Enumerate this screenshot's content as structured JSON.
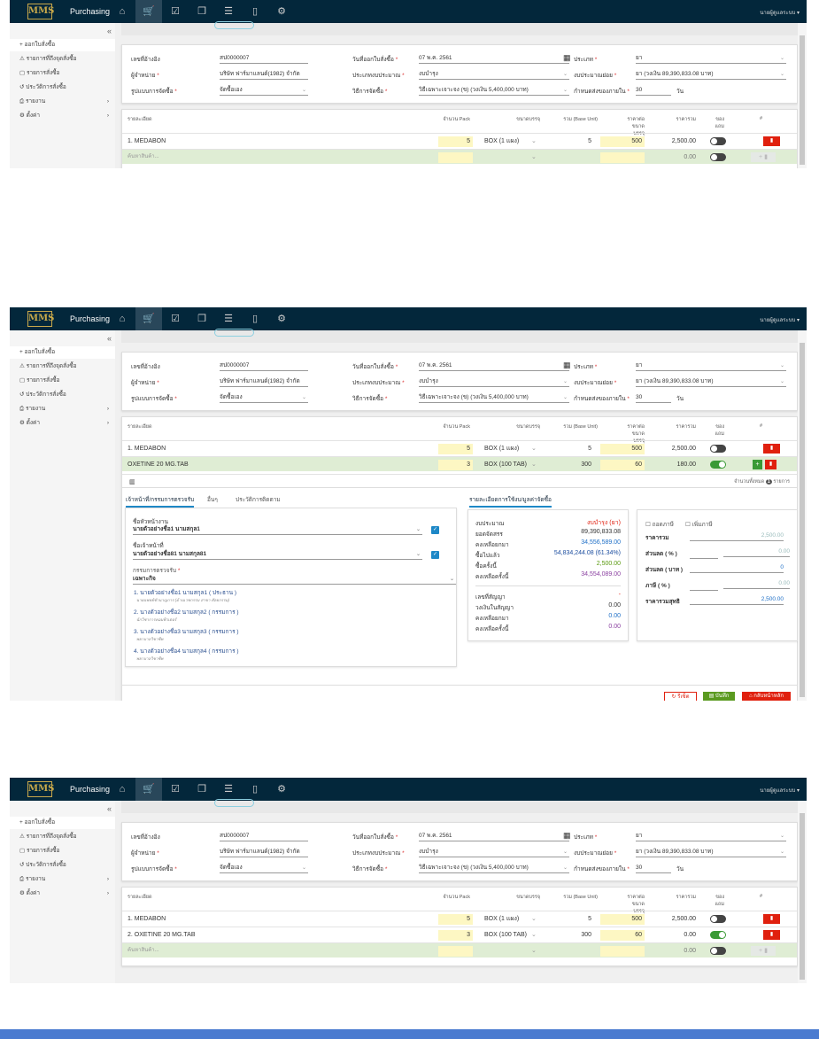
{
  "app": {
    "title": "Purchasing",
    "logo": "MMS",
    "user": "นายผู้ดูแลระบบ ▾",
    "collapse": "«"
  },
  "nav_icons": [
    "home-icon",
    "cart-icon",
    "checklist-icon",
    "box-icon",
    "database-icon",
    "document-icon",
    "gear-icon"
  ],
  "nav_glyphs": [
    "⌂",
    "🛒",
    "☑",
    "❒",
    "☰",
    "▯",
    "⚙"
  ],
  "sidebar": {
    "items": [
      {
        "label": "+ ออกใบสั่งซื้อ",
        "icon": "plus-icon",
        "active": true
      },
      {
        "label": "⚠ รายการที่ถึงจุดสั่งซื้อ",
        "icon": "warning-icon"
      },
      {
        "label": "▢ รายการสั่งซื้อ",
        "icon": "bag-icon"
      },
      {
        "label": "↺ ประวัติการสั่งซื้อ",
        "icon": "history-icon"
      },
      {
        "label": "⎙ รายงาน",
        "icon": "printer-icon",
        "chevron": "›"
      },
      {
        "label": "⚙ ตั้งค่า",
        "icon": "gear-icon",
        "chevron": "›"
      }
    ]
  },
  "form": {
    "fields": [
      {
        "label": "เลขที่อ้างอิง",
        "value": "สป0000007"
      },
      {
        "label": "ผู้จำหน่าย",
        "value": "บริษัท ฟาร์มาแลนด์(1982) จำกัด",
        "required": "*"
      },
      {
        "label": "รูปแบบการจัดซื้อ",
        "value": "จัดซื้อเอง",
        "required": "*"
      },
      {
        "label": "วันที่ออกใบสั่งซื้อ",
        "value": "07 พ.ค. 2561",
        "required": "*"
      },
      {
        "label": "ประเภทงบประมาณ",
        "value": "งบบำรุง",
        "required": "*"
      },
      {
        "label": "วิธีการจัดซื้อ",
        "value": "วิธีเฉพาะเจาะจง (ข) (วงเงิน 5,400,000 บาท)",
        "required": "*"
      },
      {
        "label": "ประเภท",
        "value": "ยา",
        "required": "*"
      },
      {
        "label": "งบประมาณย่อย",
        "value": "ยา (วงเงิน 89,390,833.08 บาท)",
        "required": "*"
      },
      {
        "label": "กำหนดส่งของภายใน",
        "value": "30",
        "required": "*",
        "unit": "วัน"
      }
    ]
  },
  "table": {
    "headers": [
      "รายละเอียด",
      "จำนวน Pack",
      "ขนาดบรรจุ",
      "รวม (Base Unit)",
      "ราคาต่อขนาดบรรจุ",
      "ราคารวม",
      "ของแถม",
      "#"
    ],
    "search_placeholder": "ค้นหาสินค้า...",
    "search_total": "0.00"
  },
  "panels": [
    {
      "rows": [
        {
          "name": "1. MEDABON",
          "pack": "5",
          "size": "BOX (1 แผง)",
          "base": "5",
          "price": "500",
          "total": "2,500.00",
          "free": false
        }
      ],
      "search": true
    },
    {
      "rows": [
        {
          "name": "1. MEDABON",
          "pack": "5",
          "size": "BOX (1 แผง)",
          "base": "5",
          "price": "500",
          "total": "2,500.00",
          "free": false
        },
        {
          "name": "OXETINE 20 MG.TAB",
          "pack": "3",
          "size": "BOX (100 TAB)",
          "base": "300",
          "price": "60",
          "total": "180.00",
          "free": true,
          "editing": true
        }
      ],
      "search": false,
      "details": true
    },
    {
      "rows": [
        {
          "name": "1. MEDABON",
          "pack": "5",
          "size": "BOX (1 แผง)",
          "base": "5",
          "price": "500",
          "total": "2,500.00",
          "free": false
        },
        {
          "name": "2. OXETINE 20 MG.TAB",
          "pack": "3",
          "size": "BOX (100 TAB)",
          "base": "300",
          "price": "60",
          "total": "0.00",
          "free": true
        }
      ],
      "search": true
    }
  ],
  "details": {
    "count_label": "จำนวนทั้งหมด",
    "count": "1",
    "count_unit": "รายการ",
    "tabs": [
      "เจ้าหน้าที่/กรรมการตรวจรับ",
      "อื่นๆ",
      "ประวัติการติดตาม"
    ],
    "right_tab": "รายละเอียดการใช้งบ/มูลค่าจัดซื้อ",
    "supervisor_label": "ชื่อหัวหน้างาน",
    "supervisor": "นายตัวอย่างชื่อ1 นามสกุล1",
    "officer_label": "ชื่อเจ้าหน้าที่",
    "officer": "นายตัวอย่างชื่อ81 นามสกุล81",
    "committee_label": "กรรมการตรวจรับ",
    "committee_type": "เฉพาะกิจ",
    "members": [
      {
        "name": "1. นายตัวอย่างชื่อ1 นามสกุล1 ( ประธาน )",
        "position": "นายแพทย์ชำนาญการ (ด้านเวชกรรม สาขา ศัลยกรรม)"
      },
      {
        "name": "2. นางตัวอย่างชื่อ2 นามสกุล2 ( กรรมการ )",
        "position": "นักวิชาการคอมพิวเตอร์"
      },
      {
        "name": "3. นางตัวอย่างชื่อ3 นามสกุล3 ( กรรมการ )",
        "position": "พยาบาลวิชาชีพ"
      },
      {
        "name": "4. นางตัวอย่างชื่อ4 นามสกุล4 ( กรรมการ )",
        "position": "พยาบาลวิชาชีพ"
      }
    ],
    "budget": [
      {
        "label": "งบประมาณ",
        "value": "งบบำรุง (ยา)",
        "color": "#e02010"
      },
      {
        "label": "ยอดจัดสรร",
        "value": "89,390,833.08",
        "color": "#333333"
      },
      {
        "label": "คงเหลือยกมา",
        "value": "34,556,589.00",
        "color": "#1e6fc7"
      },
      {
        "label": "ซื้อไปแล้ว",
        "value": "54,834,244.08 (61.34%)",
        "color": "#1e4fa0"
      },
      {
        "label": "ซื้อครั้งนี้",
        "value": "2,500.00",
        "color": "#5a9a10"
      },
      {
        "label": "คงเหลือครั้งนี้",
        "value": "34,554,089.00",
        "color": "#8a3fa0"
      }
    ],
    "contract": [
      {
        "label": "เลขที่สัญญา",
        "value": "-",
        "color": "#e02010"
      },
      {
        "label": "วงเงินในสัญญา",
        "value": "0.00",
        "color": "#333333"
      },
      {
        "label": "คงเหลือยกมา",
        "value": "0.00",
        "color": "#1e6fc7"
      },
      {
        "label": "คงเหลือครั้งนี้",
        "value": "0.00",
        "color": "#8a3fa0"
      }
    ],
    "tax_options": [
      "ถอดภาษี",
      "เพิ่มภาษี"
    ],
    "summary": [
      {
        "label": "ราคารวม",
        "value": "2,500.00"
      },
      {
        "label": "ส่วนลด ( % )",
        "value": "0.00"
      },
      {
        "label": "ส่วนลด ( บาท )",
        "value": "0"
      },
      {
        "label": "ภาษี ( % )",
        "value": "0.00"
      },
      {
        "label": "ราคารวมสุทธิ",
        "value": "2,500.00"
      }
    ],
    "buttons": {
      "reset": "↻ รีเซ็ต",
      "save": "▤ บันทึก",
      "back": "⌂ กลับหน้าหลัก"
    }
  },
  "colors": {
    "nav": "#03273b",
    "accent": "#1e88c7",
    "danger": "#e0200e",
    "success": "#3a9a36",
    "footer_bar": "#4a7bd0"
  }
}
